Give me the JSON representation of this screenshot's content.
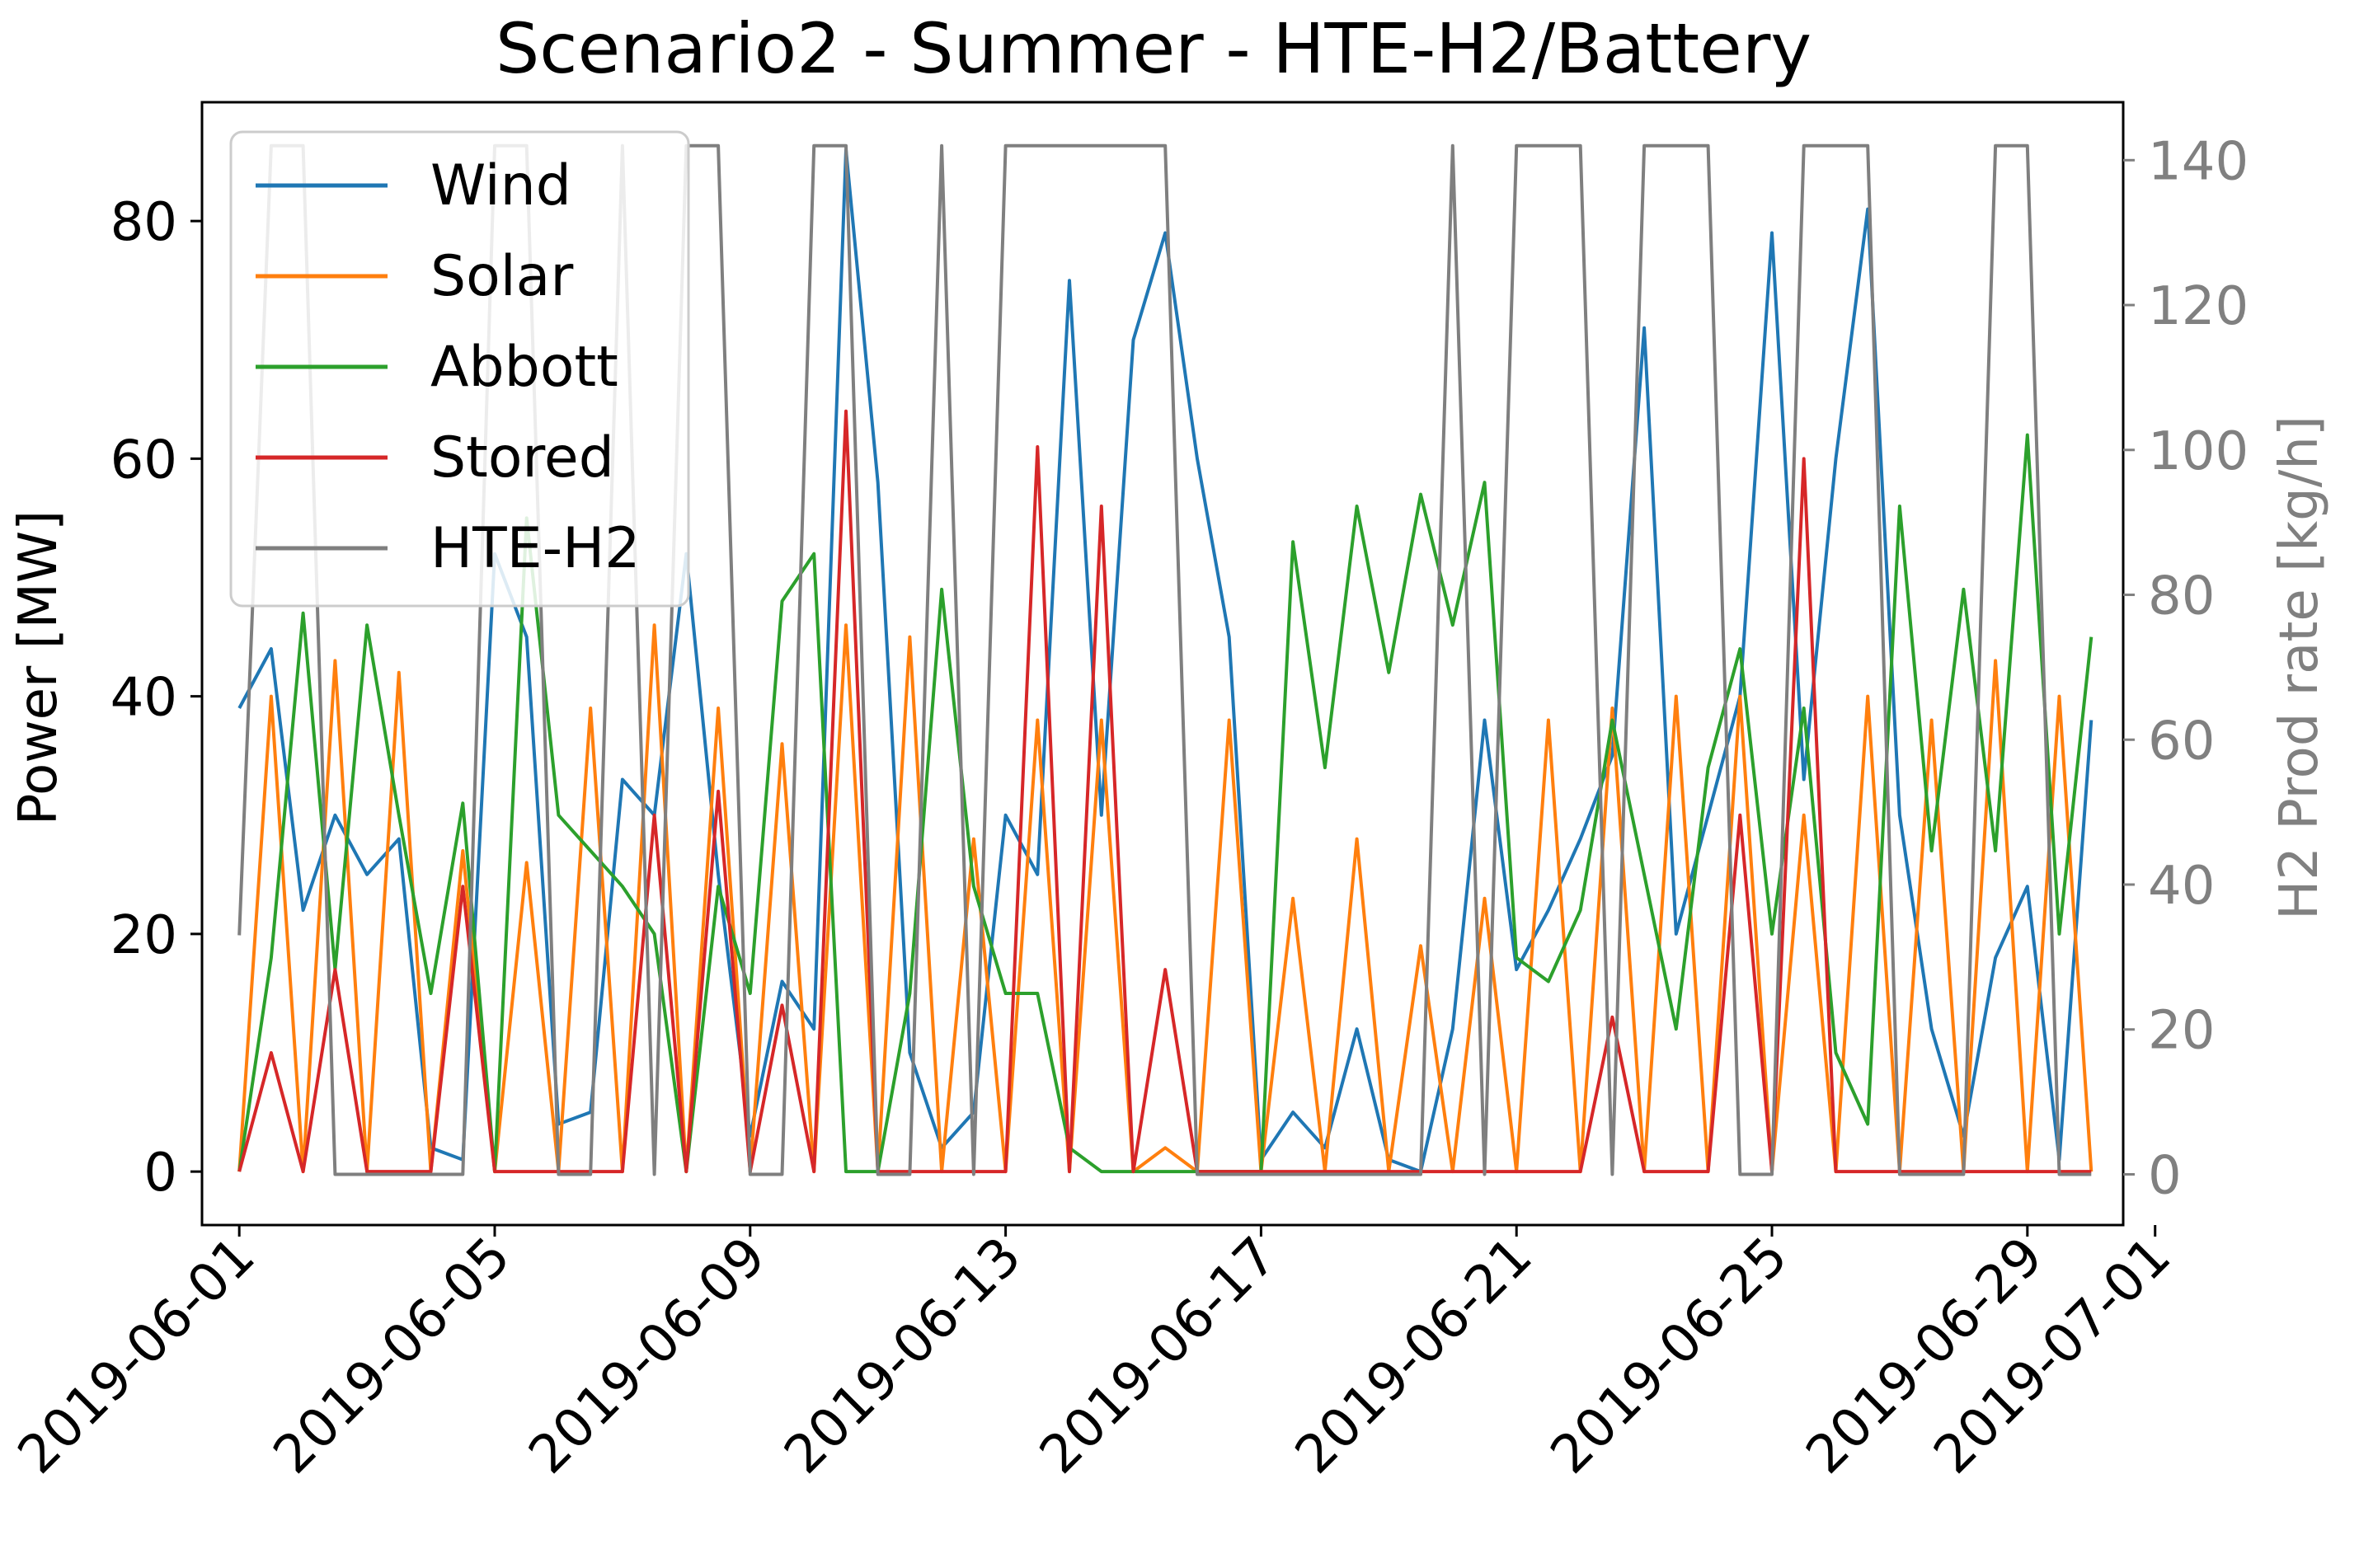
{
  "chart_data": {
    "type": "line",
    "title": "Scenario2 - Summer - HTE-H2/Battery",
    "xlabel": "",
    "ylabel": "Power [MW]",
    "y2label": "H2 Prod rate [kg/h]",
    "ylim": [
      -4.5,
      90
    ],
    "y2lim": [
      -7,
      148
    ],
    "yticks": [
      0,
      20,
      40,
      60,
      80
    ],
    "y2ticks": [
      0,
      20,
      40,
      60,
      80,
      100,
      120,
      140
    ],
    "xlim": [
      "2019-05-31T10:00",
      "2019-06-30T12:00"
    ],
    "xticks": [
      "2019-06-01",
      "2019-06-05",
      "2019-06-09",
      "2019-06-13",
      "2019-06-17",
      "2019-06-21",
      "2019-06-25",
      "2019-06-29",
      "2019-07-01"
    ],
    "legend_position": "upper-left",
    "right_axis_color": "#808080",
    "series": [
      {
        "name": "Wind",
        "color": "#1f77b4",
        "axis": "left",
        "x": [
          "2019-06-01T00:00",
          "2019-06-01T12:00",
          "2019-06-02T00:00",
          "2019-06-02T12:00",
          "2019-06-03T00:00",
          "2019-06-03T12:00",
          "2019-06-04T00:00",
          "2019-06-04T12:00",
          "2019-06-05T00:00",
          "2019-06-05T12:00",
          "2019-06-06T00:00",
          "2019-06-06T12:00",
          "2019-06-07T00:00",
          "2019-06-07T12:00",
          "2019-06-08T00:00",
          "2019-06-08T12:00",
          "2019-06-09T00:00",
          "2019-06-09T12:00",
          "2019-06-10T00:00",
          "2019-06-10T12:00",
          "2019-06-11T00:00",
          "2019-06-11T12:00",
          "2019-06-12T00:00",
          "2019-06-12T12:00",
          "2019-06-13T00:00",
          "2019-06-13T12:00",
          "2019-06-14T00:00",
          "2019-06-14T12:00",
          "2019-06-15T00:00",
          "2019-06-15T12:00",
          "2019-06-16T00:00",
          "2019-06-16T12:00",
          "2019-06-17T00:00",
          "2019-06-17T12:00",
          "2019-06-18T00:00",
          "2019-06-18T12:00",
          "2019-06-19T00:00",
          "2019-06-19T12:00",
          "2019-06-20T00:00",
          "2019-06-20T12:00",
          "2019-06-21T00:00",
          "2019-06-21T12:00",
          "2019-06-22T00:00",
          "2019-06-22T12:00",
          "2019-06-23T00:00",
          "2019-06-23T12:00",
          "2019-06-24T00:00",
          "2019-06-24T12:00",
          "2019-06-25T00:00",
          "2019-06-25T12:00",
          "2019-06-26T00:00",
          "2019-06-26T12:00",
          "2019-06-27T00:00",
          "2019-06-27T12:00",
          "2019-06-28T00:00",
          "2019-06-28T12:00",
          "2019-06-29T00:00",
          "2019-06-29T12:00",
          "2019-06-30T00:00"
        ],
        "values": [
          39,
          44,
          22,
          30,
          25,
          28,
          2,
          1,
          52,
          45,
          4,
          5,
          33,
          30,
          52,
          25,
          3,
          16,
          12,
          86,
          58,
          10,
          2,
          5,
          30,
          25,
          75,
          30,
          70,
          79,
          60,
          45,
          1,
          5,
          2,
          12,
          1,
          0,
          12,
          38,
          17,
          22,
          28,
          35,
          71,
          20,
          30,
          40,
          79,
          33,
          60,
          81,
          30,
          12,
          3,
          18,
          24,
          1,
          38
        ]
      },
      {
        "name": "Solar",
        "color": "#ff7f0e",
        "axis": "left",
        "x": [
          "2019-06-01T00:00",
          "2019-06-01T12:00",
          "2019-06-02T00:00",
          "2019-06-02T12:00",
          "2019-06-03T00:00",
          "2019-06-03T12:00",
          "2019-06-04T00:00",
          "2019-06-04T12:00",
          "2019-06-05T00:00",
          "2019-06-05T12:00",
          "2019-06-06T00:00",
          "2019-06-06T12:00",
          "2019-06-07T00:00",
          "2019-06-07T12:00",
          "2019-06-08T00:00",
          "2019-06-08T12:00",
          "2019-06-09T00:00",
          "2019-06-09T12:00",
          "2019-06-10T00:00",
          "2019-06-10T12:00",
          "2019-06-11T00:00",
          "2019-06-11T12:00",
          "2019-06-12T00:00",
          "2019-06-12T12:00",
          "2019-06-13T00:00",
          "2019-06-13T12:00",
          "2019-06-14T00:00",
          "2019-06-14T12:00",
          "2019-06-15T00:00",
          "2019-06-15T12:00",
          "2019-06-16T00:00",
          "2019-06-16T12:00",
          "2019-06-17T00:00",
          "2019-06-17T12:00",
          "2019-06-18T00:00",
          "2019-06-18T12:00",
          "2019-06-19T00:00",
          "2019-06-19T12:00",
          "2019-06-20T00:00",
          "2019-06-20T12:00",
          "2019-06-21T00:00",
          "2019-06-21T12:00",
          "2019-06-22T00:00",
          "2019-06-22T12:00",
          "2019-06-23T00:00",
          "2019-06-23T12:00",
          "2019-06-24T00:00",
          "2019-06-24T12:00",
          "2019-06-25T00:00",
          "2019-06-25T12:00",
          "2019-06-26T00:00",
          "2019-06-26T12:00",
          "2019-06-27T00:00",
          "2019-06-27T12:00",
          "2019-06-28T00:00",
          "2019-06-28T12:00",
          "2019-06-29T00:00",
          "2019-06-29T12:00",
          "2019-06-30T00:00"
        ],
        "values": [
          0,
          40,
          0,
          43,
          0,
          42,
          0,
          27,
          0,
          26,
          0,
          39,
          0,
          46,
          0,
          39,
          0,
          36,
          0,
          46,
          0,
          45,
          0,
          28,
          0,
          38,
          0,
          38,
          0,
          2,
          0,
          38,
          0,
          23,
          0,
          28,
          0,
          19,
          0,
          23,
          0,
          38,
          0,
          39,
          0,
          40,
          0,
          40,
          0,
          30,
          0,
          40,
          0,
          38,
          0,
          43,
          0,
          40,
          0
        ]
      },
      {
        "name": "Abbott",
        "color": "#2ca02c",
        "axis": "left",
        "x": [
          "2019-06-01T00:00",
          "2019-06-01T12:00",
          "2019-06-02T00:00",
          "2019-06-02T12:00",
          "2019-06-03T00:00",
          "2019-06-03T12:00",
          "2019-06-04T00:00",
          "2019-06-04T12:00",
          "2019-06-05T00:00",
          "2019-06-05T12:00",
          "2019-06-06T00:00",
          "2019-06-06T12:00",
          "2019-06-07T00:00",
          "2019-06-07T12:00",
          "2019-06-08T00:00",
          "2019-06-08T12:00",
          "2019-06-09T00:00",
          "2019-06-09T12:00",
          "2019-06-10T00:00",
          "2019-06-10T12:00",
          "2019-06-11T00:00",
          "2019-06-11T12:00",
          "2019-06-12T00:00",
          "2019-06-12T12:00",
          "2019-06-13T00:00",
          "2019-06-13T12:00",
          "2019-06-14T00:00",
          "2019-06-14T12:00",
          "2019-06-15T00:00",
          "2019-06-15T12:00",
          "2019-06-16T00:00",
          "2019-06-16T12:00",
          "2019-06-17T00:00",
          "2019-06-17T12:00",
          "2019-06-18T00:00",
          "2019-06-18T12:00",
          "2019-06-19T00:00",
          "2019-06-19T12:00",
          "2019-06-20T00:00",
          "2019-06-20T12:00",
          "2019-06-21T00:00",
          "2019-06-21T12:00",
          "2019-06-22T00:00",
          "2019-06-22T12:00",
          "2019-06-23T00:00",
          "2019-06-23T12:00",
          "2019-06-24T00:00",
          "2019-06-24T12:00",
          "2019-06-25T00:00",
          "2019-06-25T12:00",
          "2019-06-26T00:00",
          "2019-06-26T12:00",
          "2019-06-27T00:00",
          "2019-06-27T12:00",
          "2019-06-28T00:00",
          "2019-06-28T12:00",
          "2019-06-29T00:00",
          "2019-06-29T12:00",
          "2019-06-30T00:00"
        ],
        "values": [
          0,
          18,
          47,
          17,
          46,
          30,
          15,
          31,
          0,
          55,
          30,
          27,
          24,
          20,
          0,
          24,
          15,
          48,
          52,
          0,
          0,
          15,
          49,
          24,
          15,
          15,
          2,
          0,
          0,
          0,
          0,
          0,
          0,
          53,
          34,
          56,
          42,
          57,
          46,
          58,
          18,
          16,
          22,
          38,
          25,
          12,
          34,
          44,
          20,
          39,
          10,
          4,
          56,
          27,
          49,
          27,
          62,
          20,
          45
        ]
      },
      {
        "name": "Stored",
        "color": "#d62728",
        "axis": "left",
        "x": [
          "2019-06-01T00:00",
          "2019-06-01T12:00",
          "2019-06-02T00:00",
          "2019-06-02T12:00",
          "2019-06-03T00:00",
          "2019-06-03T12:00",
          "2019-06-04T00:00",
          "2019-06-04T12:00",
          "2019-06-05T00:00",
          "2019-06-05T12:00",
          "2019-06-06T00:00",
          "2019-06-06T12:00",
          "2019-06-07T00:00",
          "2019-06-07T12:00",
          "2019-06-08T00:00",
          "2019-06-08T12:00",
          "2019-06-09T00:00",
          "2019-06-09T12:00",
          "2019-06-10T00:00",
          "2019-06-10T12:00",
          "2019-06-11T00:00",
          "2019-06-11T12:00",
          "2019-06-12T00:00",
          "2019-06-12T12:00",
          "2019-06-13T00:00",
          "2019-06-13T12:00",
          "2019-06-14T00:00",
          "2019-06-14T12:00",
          "2019-06-15T00:00",
          "2019-06-15T12:00",
          "2019-06-16T00:00",
          "2019-06-16T12:00",
          "2019-06-17T00:00",
          "2019-06-17T12:00",
          "2019-06-18T00:00",
          "2019-06-18T12:00",
          "2019-06-19T00:00",
          "2019-06-19T12:00",
          "2019-06-20T00:00",
          "2019-06-20T12:00",
          "2019-06-21T00:00",
          "2019-06-21T12:00",
          "2019-06-22T00:00",
          "2019-06-22T12:00",
          "2019-06-23T00:00",
          "2019-06-23T12:00",
          "2019-06-24T00:00",
          "2019-06-24T12:00",
          "2019-06-25T00:00",
          "2019-06-25T12:00",
          "2019-06-26T00:00",
          "2019-06-26T12:00",
          "2019-06-27T00:00",
          "2019-06-27T12:00",
          "2019-06-28T00:00",
          "2019-06-28T12:00",
          "2019-06-29T00:00",
          "2019-06-29T12:00",
          "2019-06-30T00:00"
        ],
        "values": [
          0,
          10,
          0,
          17,
          0,
          0,
          0,
          24,
          0,
          0,
          0,
          0,
          0,
          30,
          0,
          32,
          0,
          14,
          0,
          64,
          0,
          0,
          0,
          0,
          0,
          61,
          0,
          56,
          0,
          17,
          0,
          0,
          0,
          0,
          0,
          0,
          0,
          0,
          0,
          0,
          0,
          0,
          0,
          13,
          0,
          0,
          0,
          30,
          0,
          60,
          0,
          0,
          0,
          0,
          0,
          0,
          0,
          0,
          0
        ]
      },
      {
        "name": "HTE-H2",
        "color": "#7f7f7f",
        "axis": "right",
        "x": [
          "2019-06-01T00:00",
          "2019-06-01T12:00",
          "2019-06-02T00:00",
          "2019-06-02T12:00",
          "2019-06-03T00:00",
          "2019-06-03T12:00",
          "2019-06-04T00:00",
          "2019-06-04T12:00",
          "2019-06-05T00:00",
          "2019-06-05T12:00",
          "2019-06-06T00:00",
          "2019-06-06T12:00",
          "2019-06-07T00:00",
          "2019-06-07T12:00",
          "2019-06-08T00:00",
          "2019-06-08T12:00",
          "2019-06-09T00:00",
          "2019-06-09T12:00",
          "2019-06-10T00:00",
          "2019-06-10T12:00",
          "2019-06-11T00:00",
          "2019-06-11T12:00",
          "2019-06-12T00:00",
          "2019-06-12T12:00",
          "2019-06-13T00:00",
          "2019-06-13T12:00",
          "2019-06-14T00:00",
          "2019-06-14T12:00",
          "2019-06-15T00:00",
          "2019-06-15T12:00",
          "2019-06-16T00:00",
          "2019-06-16T12:00",
          "2019-06-17T00:00",
          "2019-06-17T12:00",
          "2019-06-18T00:00",
          "2019-06-18T12:00",
          "2019-06-19T00:00",
          "2019-06-19T12:00",
          "2019-06-20T00:00",
          "2019-06-20T12:00",
          "2019-06-21T00:00",
          "2019-06-21T12:00",
          "2019-06-22T00:00",
          "2019-06-22T12:00",
          "2019-06-23T00:00",
          "2019-06-23T12:00",
          "2019-06-24T00:00",
          "2019-06-24T12:00",
          "2019-06-25T00:00",
          "2019-06-25T12:00",
          "2019-06-26T00:00",
          "2019-06-26T12:00",
          "2019-06-27T00:00",
          "2019-06-27T12:00",
          "2019-06-28T00:00",
          "2019-06-28T12:00",
          "2019-06-29T00:00",
          "2019-06-29T12:00",
          "2019-06-30T00:00"
        ],
        "values": [
          33,
          142,
          142,
          0,
          0,
          0,
          0,
          0,
          142,
          142,
          0,
          0,
          142,
          0,
          142,
          142,
          0,
          0,
          142,
          142,
          0,
          0,
          142,
          0,
          142,
          142,
          142,
          142,
          142,
          142,
          0,
          0,
          0,
          0,
          0,
          0,
          0,
          0,
          142,
          0,
          142,
          142,
          142,
          0,
          142,
          142,
          142,
          0,
          0,
          142,
          142,
          142,
          0,
          0,
          0,
          142,
          142,
          0,
          0
        ]
      }
    ]
  }
}
